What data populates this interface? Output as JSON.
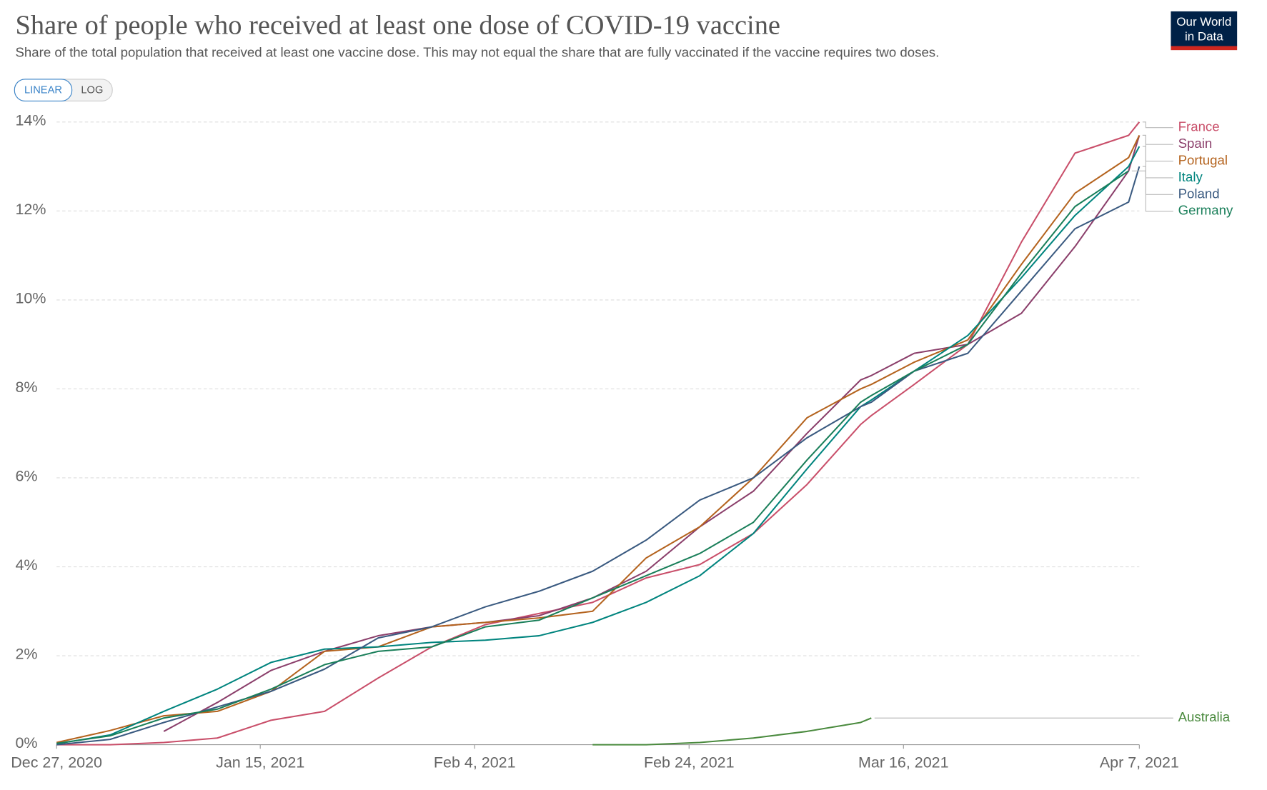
{
  "chart_data": {
    "type": "line",
    "title": "Share of people who received at least one dose of COVID-19 vaccine",
    "subtitle": "Share of the total population that received at least one vaccine dose. This may not equal the share that are fully vaccinated if the vaccine requires two doses.",
    "log_scale": false,
    "grid": true,
    "x": [
      "2020-12-27",
      "2021-01-01",
      "2021-01-06",
      "2021-01-11",
      "2021-01-16",
      "2021-01-21",
      "2021-01-26",
      "2021-01-31",
      "2021-02-05",
      "2021-02-10",
      "2021-02-15",
      "2021-02-20",
      "2021-02-25",
      "2021-03-02",
      "2021-03-07",
      "2021-03-12",
      "2021-03-13",
      "2021-03-17",
      "2021-03-22",
      "2021-03-27",
      "2021-04-01",
      "2021-04-06",
      "2021-04-07"
    ],
    "xlim": [
      "2020-12-27",
      "2021-04-07"
    ],
    "xticks": [
      {
        "value": "2020-12-27",
        "label": "Dec 27, 2020"
      },
      {
        "value": "2021-01-15",
        "label": "Jan 15, 2021"
      },
      {
        "value": "2021-02-04",
        "label": "Feb 4, 2021"
      },
      {
        "value": "2021-02-24",
        "label": "Feb 24, 2021"
      },
      {
        "value": "2021-03-16",
        "label": "Mar 16, 2021"
      },
      {
        "value": "2021-04-07",
        "label": "Apr 7, 2021"
      }
    ],
    "ylim": [
      0,
      14
    ],
    "yticks": [
      {
        "value": 0,
        "label": "0%"
      },
      {
        "value": 2,
        "label": "2%"
      },
      {
        "value": 4,
        "label": "4%"
      },
      {
        "value": 6,
        "label": "6%"
      },
      {
        "value": 8,
        "label": "8%"
      },
      {
        "value": 10,
        "label": "10%"
      },
      {
        "value": 12,
        "label": "12%"
      },
      {
        "value": 14,
        "label": "14%"
      }
    ],
    "series": [
      {
        "name": "France",
        "color": "#c94f6a",
        "values": [
          0,
          0,
          0.05,
          0.15,
          0.55,
          0.75,
          1.5,
          2.2,
          2.7,
          2.95,
          3.2,
          3.75,
          4.05,
          4.75,
          5.85,
          7.2,
          7.4,
          8.1,
          9.0,
          11.3,
          13.3,
          13.7,
          14.0
        ]
      },
      {
        "name": "Spain",
        "color": "#8b3f6b",
        "values": [
          null,
          null,
          0.3,
          0.95,
          1.67,
          2.1,
          2.45,
          2.65,
          2.75,
          2.9,
          3.3,
          3.9,
          4.9,
          5.7,
          7.0,
          8.2,
          8.3,
          8.8,
          9.0,
          9.7,
          11.2,
          12.9,
          13.7
        ]
      },
      {
        "name": "Portugal",
        "color": "#b4631e",
        "values": [
          0.05,
          0.32,
          0.65,
          0.75,
          1.2,
          2.1,
          2.2,
          2.65,
          2.75,
          2.85,
          3.0,
          4.2,
          4.9,
          6.0,
          7.35,
          8.0,
          8.1,
          8.6,
          9.1,
          10.8,
          12.4,
          13.2,
          13.7
        ]
      },
      {
        "name": "Italy",
        "color": "#00847e",
        "values": [
          0.02,
          0.22,
          0.75,
          1.25,
          1.85,
          2.15,
          2.2,
          2.3,
          2.35,
          2.45,
          2.75,
          3.2,
          3.8,
          4.75,
          6.2,
          7.6,
          7.75,
          8.4,
          9.2,
          10.5,
          11.9,
          13.0,
          13.45
        ]
      },
      {
        "name": "Poland",
        "color": "#3a5a80",
        "values": [
          0,
          0.12,
          0.5,
          0.85,
          1.2,
          1.7,
          2.4,
          2.65,
          3.1,
          3.45,
          3.9,
          4.6,
          5.5,
          6.0,
          6.9,
          7.6,
          7.7,
          8.4,
          8.8,
          10.2,
          11.6,
          12.2,
          13.0
        ]
      },
      {
        "name": "Germany",
        "color": "#1a7f5a",
        "values": [
          0.03,
          0.2,
          0.6,
          0.8,
          1.25,
          1.8,
          2.1,
          2.2,
          2.65,
          2.8,
          3.3,
          3.8,
          4.3,
          5.0,
          6.4,
          7.7,
          7.85,
          8.4,
          9.0,
          10.6,
          12.1,
          12.9,
          null
        ]
      },
      {
        "name": "Australia",
        "color": "#4a8a3e",
        "values": [
          null,
          null,
          null,
          null,
          null,
          null,
          null,
          null,
          null,
          null,
          0,
          0,
          0.05,
          0.15,
          0.3,
          0.5,
          0.6,
          null,
          null,
          null,
          null,
          null,
          null
        ]
      }
    ]
  },
  "controls": {
    "linear": "LINEAR",
    "log": "LOG"
  },
  "logo": {
    "line1": "Our World",
    "line2": "in Data"
  }
}
